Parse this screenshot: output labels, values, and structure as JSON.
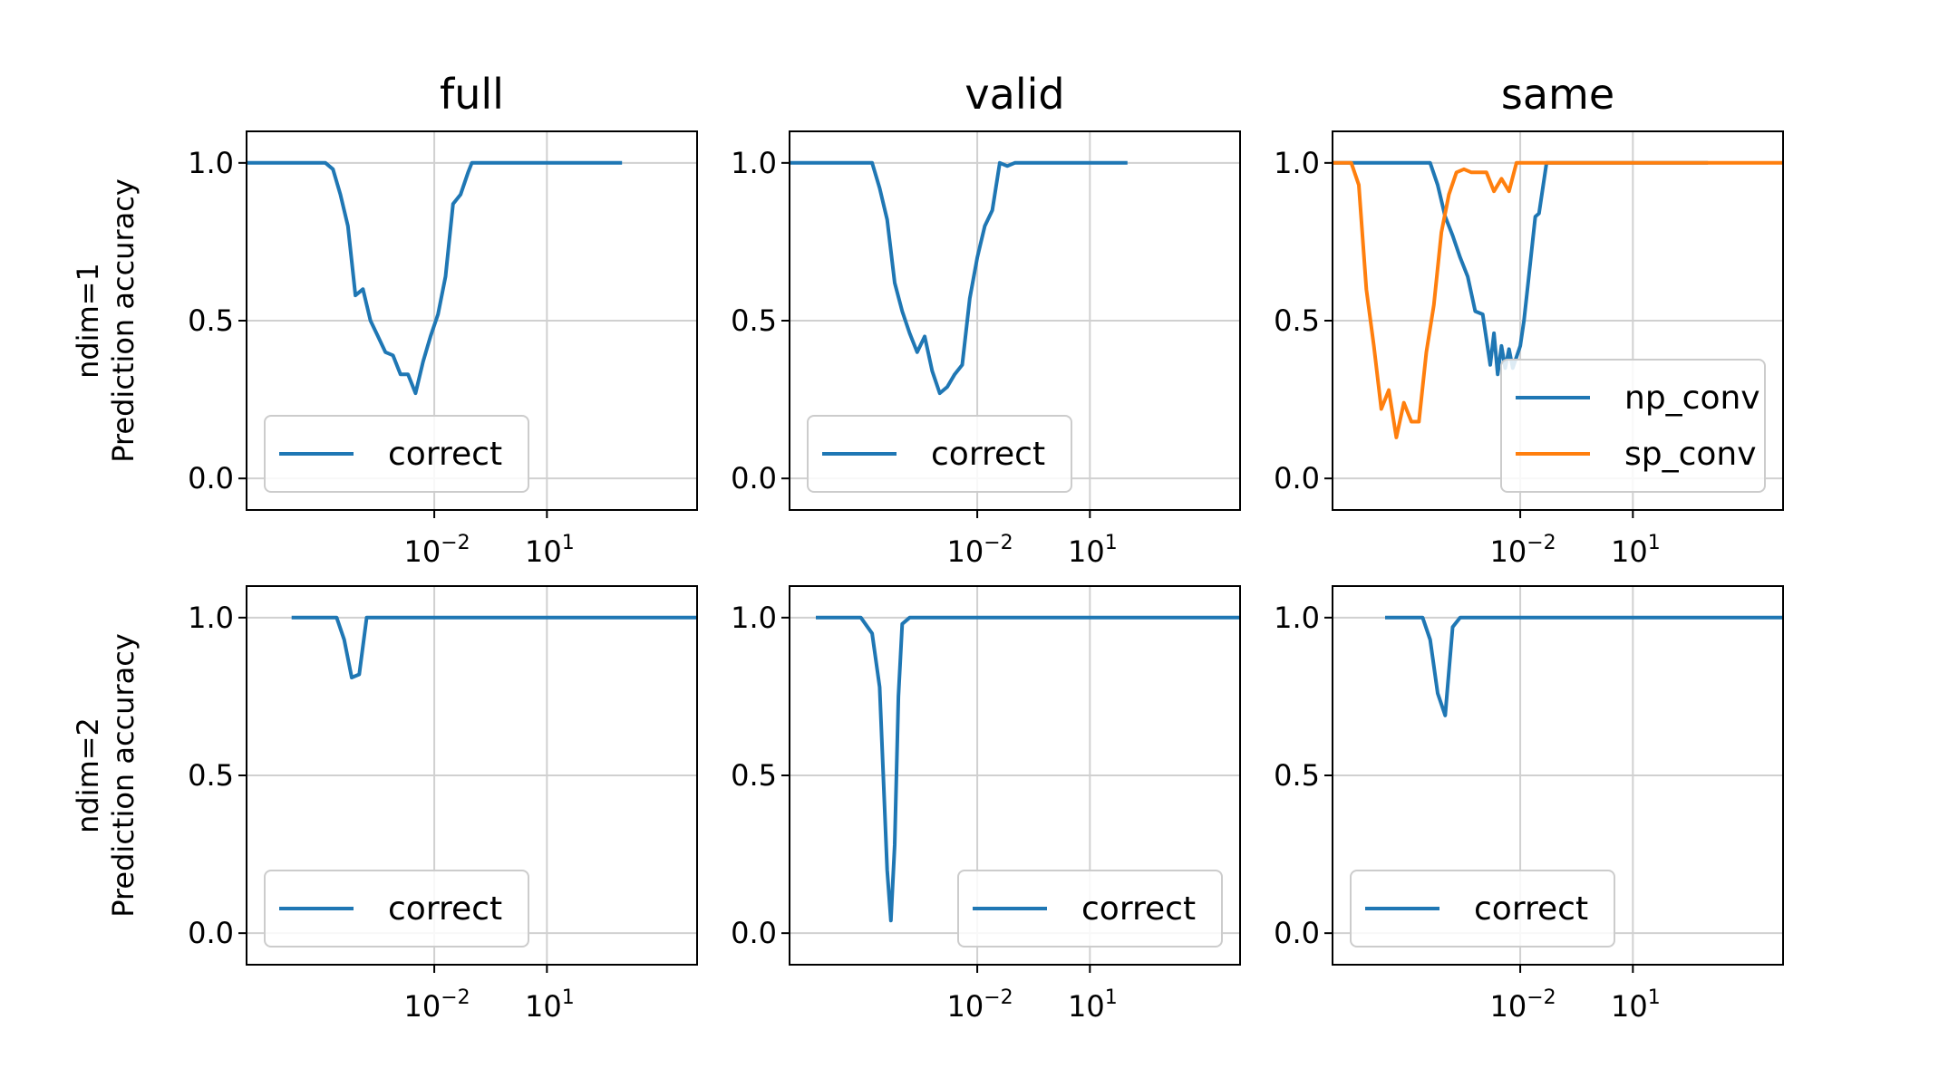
{
  "colors": {
    "np_conv": "#1f77b4",
    "sp_conv": "#ff7f0e",
    "grid": "#d0d0d0",
    "axes": "#000000"
  },
  "chart_data": {
    "type": "line",
    "xscale": "log",
    "xlim_log10": [
      -7,
      5
    ],
    "ylim": [
      -0.1,
      1.1
    ],
    "grid": true,
    "column_titles": [
      "full",
      "valid",
      "same"
    ],
    "row_labels": [
      {
        "line1": "ndim=1",
        "line2": "Prediction accuracy"
      },
      {
        "line1": "ndim=2",
        "line2": "Prediction accuracy"
      }
    ],
    "xticks": [
      {
        "base": "10",
        "exp": "−2",
        "log10": -2
      },
      {
        "base": "10",
        "exp": "1",
        "log10": 1
      }
    ],
    "yticks": [
      {
        "value": 0.0,
        "label": "0.0"
      },
      {
        "value": 0.5,
        "label": "0.5"
      },
      {
        "value": 1.0,
        "label": "1.0"
      }
    ],
    "panels": [
      {
        "row": 0,
        "col": 0,
        "legend_loc": "lower left",
        "series": [
          {
            "name": "correct",
            "color": "#1f77b4",
            "x_log10": [
              -7,
              -6,
              -5,
              -4.9,
              -4.7,
              -4.5,
              -4.3,
              -4.1,
              -3.9,
              -3.7,
              -3.5,
              -3.3,
              -3.1,
              -2.9,
              -2.7,
              -2.5,
              -2.3,
              -2.1,
              -1.9,
              -1.7,
              -1.5,
              -1.3,
              -1.1,
              -1.0,
              0,
              1,
              2,
              3
            ],
            "y": [
              1,
              1,
              1,
              1,
              0.98,
              0.9,
              0.8,
              0.58,
              0.6,
              0.5,
              0.45,
              0.4,
              0.39,
              0.33,
              0.33,
              0.27,
              0.37,
              0.45,
              0.52,
              0.64,
              0.87,
              0.9,
              0.97,
              1,
              1,
              1,
              1,
              1
            ]
          }
        ]
      },
      {
        "row": 0,
        "col": 1,
        "legend_loc": "lower left",
        "series": [
          {
            "name": "correct",
            "color": "#1f77b4",
            "x_log10": [
              -7,
              -6,
              -5,
              -4.8,
              -4.6,
              -4.4,
              -4.2,
              -4.0,
              -3.8,
              -3.6,
              -3.4,
              -3.2,
              -3.0,
              -2.8,
              -2.6,
              -2.4,
              -2.2,
              -2.0,
              -1.8,
              -1.6,
              -1.4,
              -1.2,
              -1.0,
              0,
              1,
              2
            ],
            "y": [
              1,
              1,
              1,
              1,
              0.92,
              0.82,
              0.62,
              0.53,
              0.46,
              0.4,
              0.45,
              0.34,
              0.27,
              0.29,
              0.33,
              0.36,
              0.57,
              0.7,
              0.8,
              0.85,
              1,
              0.99,
              1,
              1,
              1,
              1
            ]
          }
        ]
      },
      {
        "row": 0,
        "col": 2,
        "legend_loc": "lower right",
        "series": [
          {
            "name": "np_conv",
            "color": "#1f77b4",
            "x_log10": [
              -7,
              -6,
              -5,
              -4.8,
              -4.6,
              -4.4,
              -4.2,
              -4.0,
              -3.8,
              -3.6,
              -3.4,
              -3.2,
              -3.0,
              -2.8,
              -2.7,
              -2.6,
              -2.5,
              -2.4,
              -2.3,
              -2.2,
              -2.0,
              -1.9,
              -1.8,
              -1.6,
              -1.5,
              -1.3,
              0,
              1,
              3
            ],
            "y": [
              1,
              1,
              1,
              1,
              1,
              1,
              0.93,
              0.83,
              0.77,
              0.7,
              0.64,
              0.53,
              0.52,
              0.36,
              0.46,
              0.33,
              0.42,
              0.35,
              0.41,
              0.35,
              0.42,
              0.5,
              0.61,
              0.83,
              0.84,
              1,
              1,
              1,
              1
            ]
          },
          {
            "name": "sp_conv",
            "color": "#ff7f0e",
            "x_log10": [
              -7,
              -6.7,
              -6.5,
              -6.3,
              -6.1,
              -5.9,
              -5.7,
              -5.5,
              -5.3,
              -5.1,
              -4.9,
              -4.7,
              -4.5,
              -4.3,
              -4.1,
              -3.9,
              -3.7,
              -3.5,
              -3.3,
              -3.1,
              -2.9,
              -2.7,
              -2.5,
              -2.3,
              -2.1,
              -1.9,
              -1.7,
              -1.5,
              0,
              2,
              5.2
            ],
            "y": [
              1,
              1,
              1,
              0.93,
              0.6,
              0.42,
              0.22,
              0.28,
              0.13,
              0.24,
              0.18,
              0.18,
              0.4,
              0.55,
              0.78,
              0.9,
              0.97,
              0.98,
              0.97,
              0.97,
              0.97,
              0.91,
              0.95,
              0.91,
              1,
              1,
              1,
              1,
              1,
              1,
              1
            ]
          }
        ]
      },
      {
        "row": 1,
        "col": 0,
        "legend_loc": "lower left",
        "series": [
          {
            "name": "correct",
            "color": "#1f77b4",
            "x_log10": [
              -5.8,
              -5.4,
              -5.0,
              -4.6,
              -4.4,
              -4.2,
              -4.0,
              -3.8,
              -3,
              0,
              3,
              5
            ],
            "y": [
              1,
              1,
              1,
              1,
              0.93,
              0.81,
              0.82,
              1,
              1,
              1,
              1,
              1
            ]
          }
        ]
      },
      {
        "row": 1,
        "col": 1,
        "legend_loc": "lower right",
        "series": [
          {
            "name": "correct",
            "color": "#1f77b4",
            "x_log10": [
              -6.3,
              -5.7,
              -5.1,
              -4.8,
              -4.6,
              -4.4,
              -4.3,
              -4.2,
              -4.1,
              -4.0,
              -3.8,
              -3.6,
              -3.2,
              0,
              3,
              5
            ],
            "y": [
              1,
              1,
              1,
              0.95,
              0.78,
              0.2,
              0.04,
              0.28,
              0.75,
              0.98,
              1,
              1,
              1,
              1,
              1,
              1
            ]
          }
        ]
      },
      {
        "row": 1,
        "col": 2,
        "legend_loc": "lower left",
        "series": [
          {
            "name": "correct",
            "color": "#1f77b4",
            "x_log10": [
              -5.6,
              -5.0,
              -4.6,
              -4.4,
              -4.2,
              -4.0,
              -3.8,
              -3.6,
              -3,
              0,
              3,
              5
            ],
            "y": [
              1,
              1,
              1,
              0.93,
              0.76,
              0.69,
              0.97,
              1,
              1,
              1,
              1,
              1
            ]
          }
        ]
      }
    ]
  }
}
